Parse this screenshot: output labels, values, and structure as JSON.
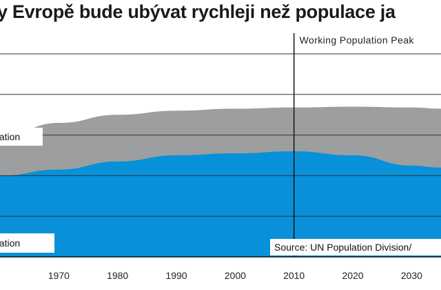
{
  "chart_data": {
    "type": "area",
    "title": "y Evropě bude ubývat rychleji než populace ja",
    "x": [
      1960,
      1970,
      1980,
      1990,
      2000,
      2010,
      2020,
      2030,
      2035
    ],
    "xlim": [
      1960,
      2035
    ],
    "x_ticks": [
      1970,
      1980,
      1990,
      2000,
      2010,
      2020,
      2030
    ],
    "x_tick_labels": [
      "1970",
      "1980",
      "1990",
      "2000",
      "2010",
      "2020",
      "2030"
    ],
    "ylim": [
      0,
      5
    ],
    "grid": true,
    "series": [
      {
        "name": "Population",
        "values": [
          2.95,
          3.3,
          3.5,
          3.6,
          3.65,
          3.68,
          3.7,
          3.68,
          3.65
        ],
        "color": "#9d9e9f"
      },
      {
        "name": "Population",
        "values": [
          2.0,
          2.15,
          2.35,
          2.5,
          2.55,
          2.6,
          2.5,
          2.25,
          2.2
        ],
        "color": "#0891d8"
      }
    ],
    "annotations": {
      "peak_year": 2010,
      "peak_label": "Working Population Peak",
      "source": "Source: UN Population Division/"
    },
    "colors": {
      "grid": "#333333",
      "line": "#111111"
    }
  }
}
